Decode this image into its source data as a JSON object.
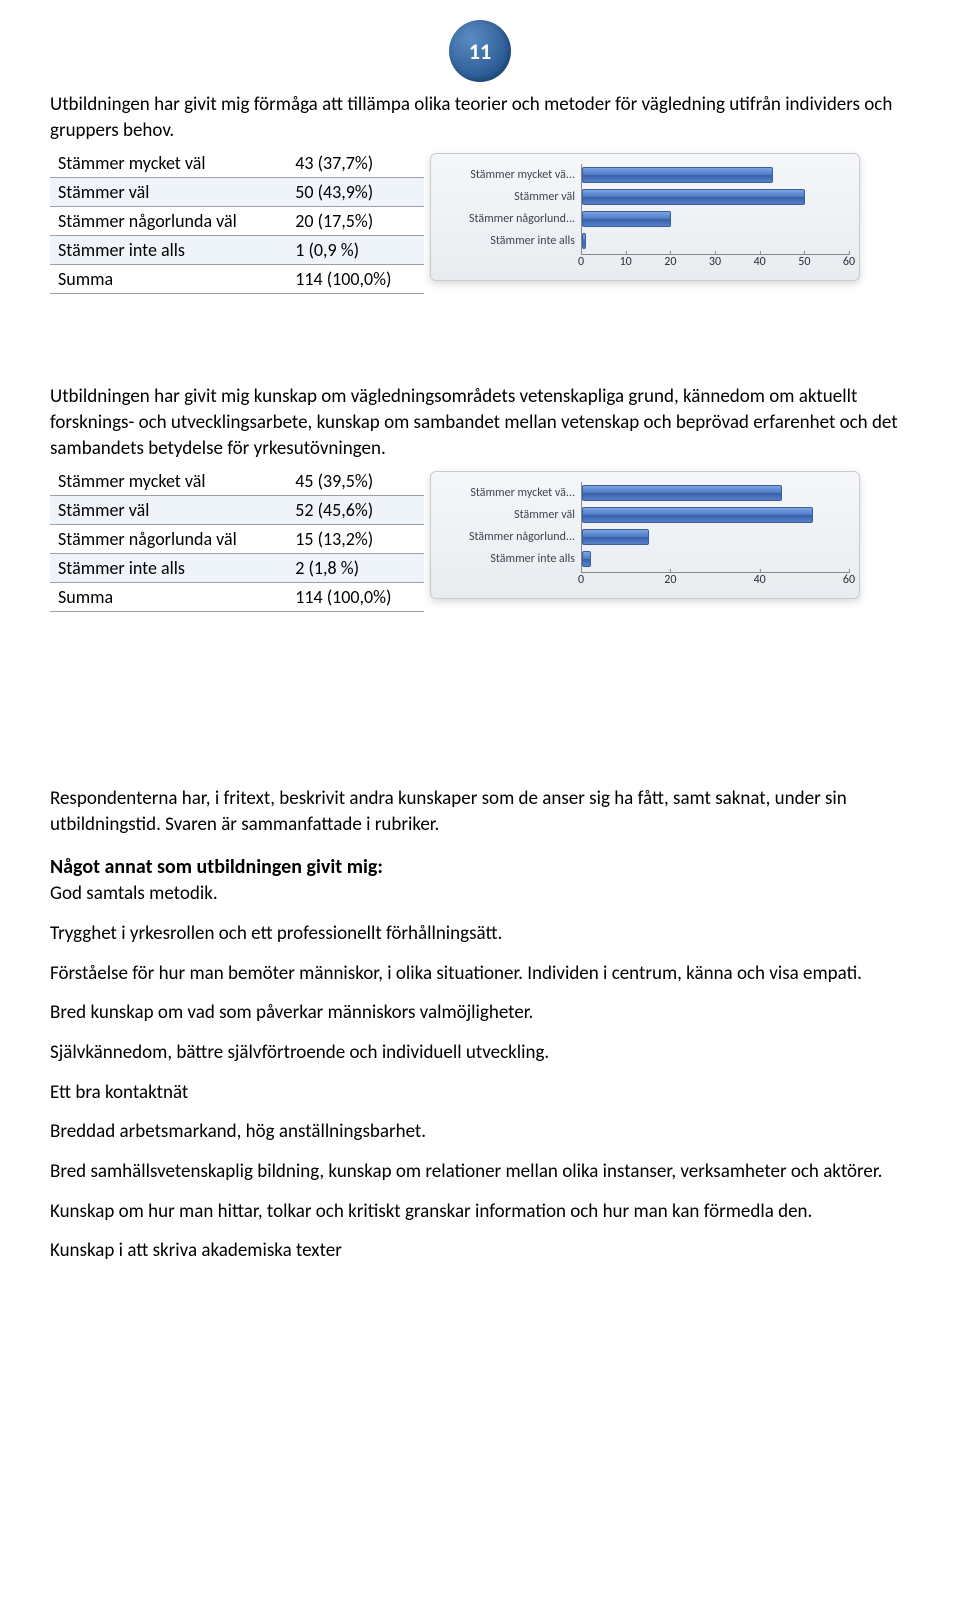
{
  "page_number": "11",
  "q1": {
    "text": "Utbildningen har givit mig förmåga att tillämpa olika teorier och metoder för vägledning utifrån individers och gruppers behov.",
    "rows": [
      {
        "label": "Stämmer mycket väl",
        "value": "43 (37,7%)"
      },
      {
        "label": "Stämmer väl",
        "value": "50 (43,9%)"
      },
      {
        "label": "Stämmer någorlunda väl",
        "value": "20 (17,5%)"
      },
      {
        "label": "Stämmer inte alls",
        "value": "1 (0,9 %)"
      },
      {
        "label": "Summa",
        "value": "114 (100,0%)"
      }
    ],
    "chart": {
      "categories": [
        "Stämmer mycket vä...",
        "Stämmer väl",
        "Stämmer någorlund...",
        "Stämmer inte alls"
      ],
      "values": [
        43,
        50,
        20,
        1
      ],
      "xmax": 60,
      "xtick_step": 10,
      "bar_color_top": "#7ba4e0",
      "bar_color_bottom": "#3760a8",
      "bg_top": "#f5f7fa",
      "bg_bottom": "#e8ecf0",
      "label_color": "#3c4450",
      "axis_color": "#888888"
    }
  },
  "q2": {
    "text": "Utbildningen har givit mig kunskap om vägledningsområdets vetenskapliga grund, kännedom om aktuellt forsknings- och utvecklingsarbete, kunskap om sambandet mellan vetenskap och beprövad erfarenhet och det sambandets betydelse för yrkesutövningen.",
    "rows": [
      {
        "label": "Stämmer mycket väl",
        "value": "45 (39,5%)"
      },
      {
        "label": "Stämmer väl",
        "value": "52 (45,6%)"
      },
      {
        "label": "Stämmer någorlunda väl",
        "value": "15 (13,2%)"
      },
      {
        "label": "Stämmer inte alls",
        "value": "2 (1,8 %)"
      },
      {
        "label": "Summa",
        "value": "114 (100,0%)"
      }
    ],
    "chart": {
      "categories": [
        "Stämmer mycket vä...",
        "Stämmer väl",
        "Stämmer någorlund...",
        "Stämmer inte alls"
      ],
      "values": [
        45,
        52,
        15,
        2
      ],
      "xmax": 60,
      "xtick_step": 20,
      "bar_color_top": "#7ba4e0",
      "bar_color_bottom": "#3760a8",
      "bg_top": "#f5f7fa",
      "bg_bottom": "#e8ecf0",
      "label_color": "#3c4450",
      "axis_color": "#888888"
    }
  },
  "para1": "Respondenterna har, i fritext, beskrivit andra kunskaper som de anser sig ha fått, samt saknat, under sin utbildningstid. Svaren är sammanfattade i rubriker.",
  "heading1": "Något annat som utbildningen givit mig:",
  "items": [
    "God samtals metodik.",
    "Trygghet i yrkesrollen och ett professionellt förhållningsätt.",
    "Förståelse för hur man bemöter människor, i olika situationer. Individen i centrum, känna och visa empati.",
    "Bred kunskap om vad som påverkar människors valmöjligheter.",
    "Självkännedom, bättre självförtroende och individuell utveckling.",
    " Ett bra kontaktnät",
    "Breddad arbetsmarkand, hög anställningsbarhet.",
    "Bred samhällsvetenskaplig bildning, kunskap om relationer mellan olika instanser, verksamheter och aktörer.",
    "Kunskap om hur man hittar, tolkar och kritiskt granskar information och hur man kan förmedla den.",
    "Kunskap i att skriva akademiska texter"
  ]
}
